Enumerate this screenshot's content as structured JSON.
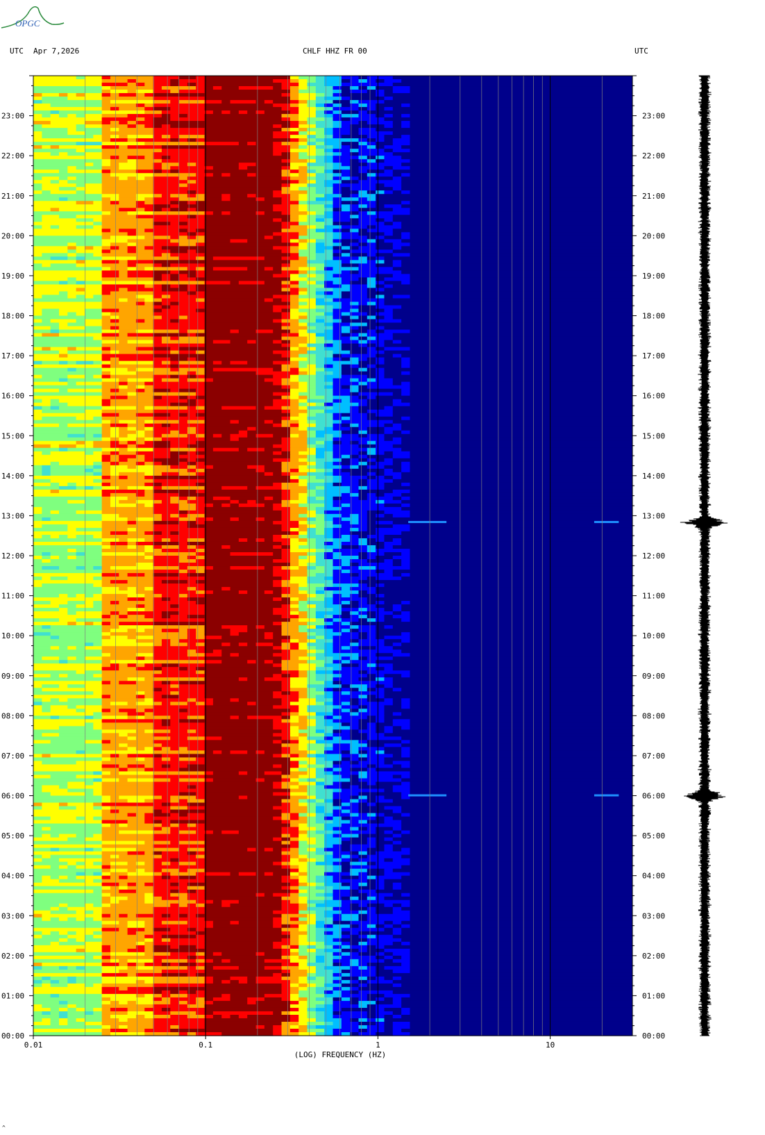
{
  "logo": {
    "text": "OPGC",
    "color": "#1a7a3c"
  },
  "header": {
    "left_tz": "UTC",
    "date": "Apr 7,2026",
    "station": "CHLF HHZ FR 00",
    "right_tz": "UTC"
  },
  "footer_mark": "^",
  "chart_data": {
    "type": "heatmap",
    "title": "CHLF HHZ FR 00",
    "xlabel": "(LOG) FREQUENCY (HZ)",
    "x_scale": "log",
    "xlim": [
      0.01,
      30
    ],
    "x_ticks": [
      {
        "value": 0.01,
        "label": "0.01"
      },
      {
        "value": 0.1,
        "label": "0.1"
      },
      {
        "value": 1,
        "label": "1"
      },
      {
        "value": 10,
        "label": "10"
      }
    ],
    "ylim_hours": [
      0,
      24
    ],
    "y_ticks": [
      "00:00",
      "01:00",
      "02:00",
      "03:00",
      "04:00",
      "05:00",
      "06:00",
      "07:00",
      "08:00",
      "09:00",
      "10:00",
      "11:00",
      "12:00",
      "13:00",
      "14:00",
      "15:00",
      "16:00",
      "17:00",
      "18:00",
      "19:00",
      "20:00",
      "21:00",
      "22:00",
      "23:00"
    ],
    "colormap": [
      "#00008b",
      "#0000ff",
      "#00bfff",
      "#40e0d0",
      "#7fff7f",
      "#ffff00",
      "#ffa500",
      "#ff0000",
      "#8b0000"
    ],
    "spectral_bands": [
      {
        "from_hz": 0.01,
        "to_hz": 0.024,
        "level": "cyan-yellow"
      },
      {
        "from_hz": 0.024,
        "to_hz": 0.05,
        "level": "yellow-red"
      },
      {
        "from_hz": 0.05,
        "to_hz": 0.1,
        "level": "red"
      },
      {
        "from_hz": 0.1,
        "to_hz": 0.25,
        "level": "dark red"
      },
      {
        "from_hz": 0.25,
        "to_hz": 0.6,
        "level": "red to blue transition"
      },
      {
        "from_hz": 0.6,
        "to_hz": 30,
        "level": "dark blue"
      }
    ],
    "events_utc": [
      "06:00",
      "12:50"
    ]
  }
}
